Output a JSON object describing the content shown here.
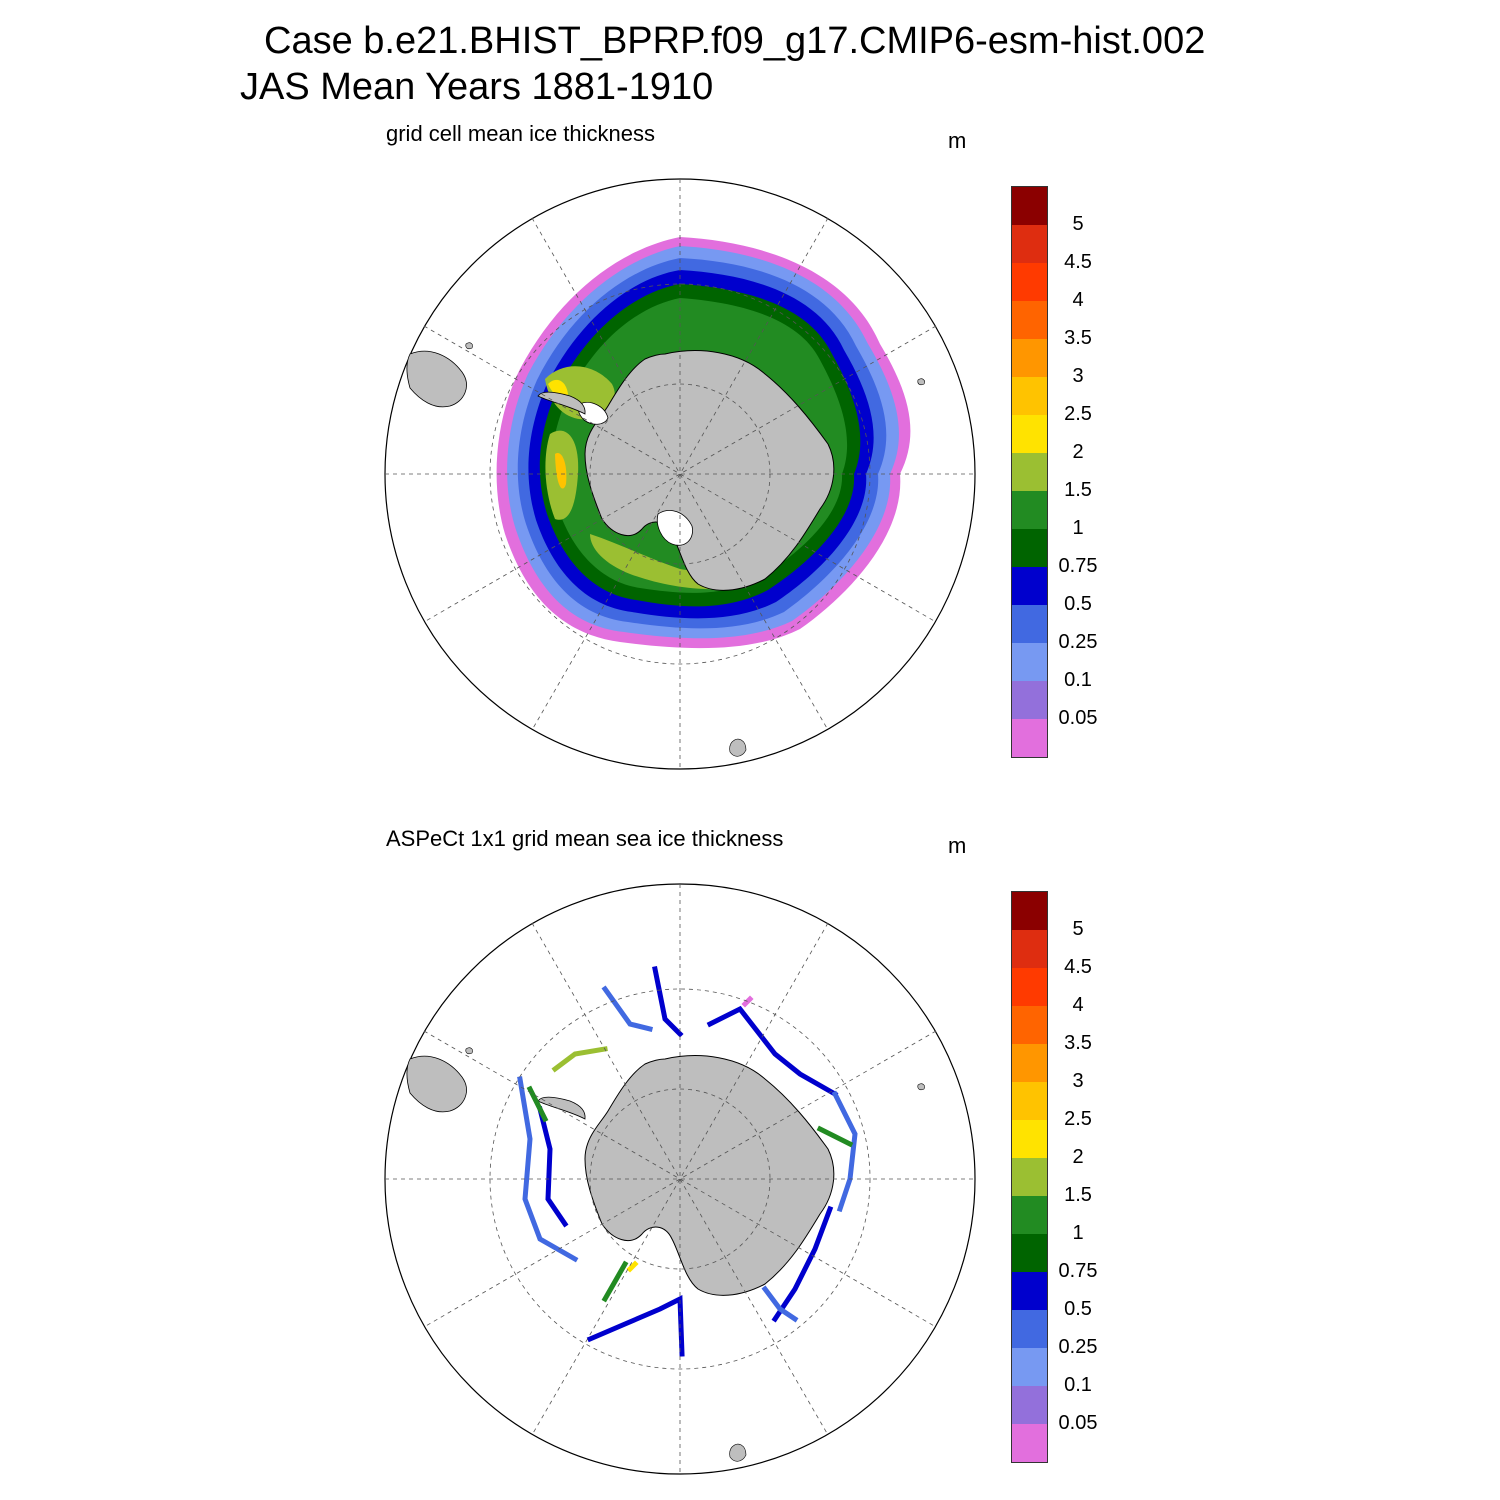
{
  "header": {
    "line1": "Case b.e21.BHIST_BPRP.f09_g17.CMIP6-esm-hist.002",
    "line2": "JAS Mean   Years 1881-1910"
  },
  "panels": [
    {
      "title": "grid cell mean ice thickness",
      "unit": "m"
    },
    {
      "title": "ASPeCt 1x1 grid mean sea ice thickness",
      "unit": "m"
    }
  ],
  "colorbar": {
    "labels": [
      "5",
      "4.5",
      "4",
      "3.5",
      "3",
      "2.5",
      "2",
      "1.5",
      "1",
      "0.75",
      "0.5",
      "0.25",
      "0.1",
      "0.05"
    ],
    "colors": [
      "#8b0000",
      "#de2d10",
      "#ff3a00",
      "#ff6400",
      "#ff9600",
      "#ffc300",
      "#ffe300",
      "#9bbf32",
      "#228b22",
      "#006400",
      "#0000cd",
      "#4169e1",
      "#7799f2",
      "#9370db",
      "#e26fdd"
    ]
  },
  "map_colors": {
    "land": "#bebebe",
    "ice_shelf": "#ffffff",
    "grid": "#555555"
  }
}
